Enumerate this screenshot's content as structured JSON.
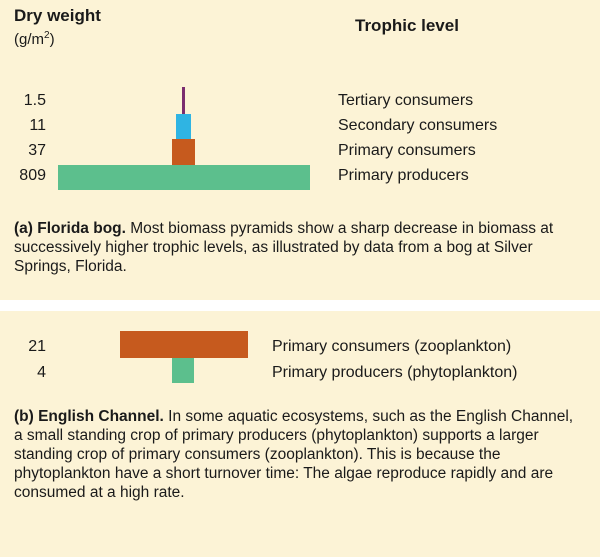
{
  "colors": {
    "background": "#fcf3d6",
    "tertiary": "#7b2d6f",
    "secondary": "#2fb4e3",
    "primary_consumers": "#c65a1e",
    "primary_producers": "#5cbf8d"
  },
  "header": {
    "dry_weight": "Dry weight",
    "unit_prefix": "(g/m",
    "unit_exp": "2",
    "unit_suffix": ")",
    "trophic_level": "Trophic level"
  },
  "panel_a": {
    "levels": [
      {
        "value_label": "1.5",
        "value": 1.5,
        "name": "Tertiary consumers",
        "color": "#7b2d6f"
      },
      {
        "value_label": "11",
        "value": 11,
        "name": "Secondary consumers",
        "color": "#2fb4e3"
      },
      {
        "value_label": "37",
        "value": 37,
        "name": "Primary consumers",
        "color": "#c65a1e"
      },
      {
        "value_label": "809",
        "value": 809,
        "name": "Primary producers",
        "color": "#5cbf8d"
      }
    ],
    "caption_bold": "(a) Florida bog.",
    "caption_text": " Most biomass pyramids show a sharp decrease in biomass at successively higher trophic levels, as illustrated by data from a bog at Silver Springs, Florida."
  },
  "panel_b": {
    "levels": [
      {
        "value_label": "21",
        "value": 21,
        "name": "Primary consumers (zooplankton)",
        "color": "#c65a1e"
      },
      {
        "value_label": "4",
        "value": 4,
        "name": "Primary producers (phytoplankton)",
        "color": "#5cbf8d"
      }
    ],
    "caption_bold": "(b) English Channel.",
    "caption_text": " In some aquatic ecosystems, such as the English Channel, a small standing crop of primary producers (phytoplankton) supports a larger standing crop of primary consumers (zooplankton). This is because the phytoplankton have a short turnover time: The algae reproduce rapidly and are consumed at a high rate."
  }
}
